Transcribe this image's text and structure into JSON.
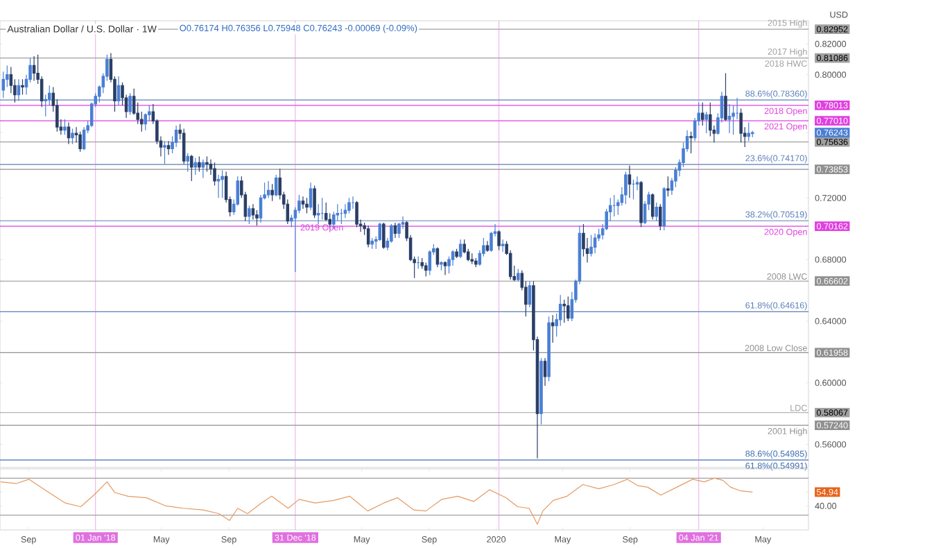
{
  "chart_data": [
    {
      "type": "candlestick",
      "title": "Australian Dollar / U.S. Dollar · 1W",
      "subtitle": "O0.76174 H0.76356 L0.75948 C0.76243 -0.00069 (-0.09%)",
      "ylabel": "USD",
      "x": [
        "2017-07-17",
        "2017-07-24",
        "2017-07-31",
        "2017-08-07",
        "2017-08-14",
        "2017-08-21",
        "2017-08-28",
        "2017-09-04",
        "2017-09-11",
        "2017-09-18",
        "2017-09-25",
        "2017-10-02",
        "2017-10-09",
        "2017-10-16",
        "2017-10-23",
        "2017-10-30",
        "2017-11-06",
        "2017-11-13",
        "2017-11-20",
        "2017-11-27",
        "2017-12-04",
        "2017-12-11",
        "2017-12-18",
        "2017-12-25",
        "2018-01-01",
        "2018-01-08",
        "2018-01-15",
        "2018-01-22",
        "2018-01-29",
        "2018-02-05",
        "2018-02-12",
        "2018-02-19",
        "2018-02-26",
        "2018-03-05",
        "2018-03-12",
        "2018-03-19",
        "2018-03-26",
        "2018-04-02",
        "2018-04-09",
        "2018-04-16",
        "2018-04-23",
        "2018-04-30",
        "2018-05-07",
        "2018-05-14",
        "2018-05-21",
        "2018-05-28",
        "2018-06-04",
        "2018-06-11",
        "2018-06-18",
        "2018-06-25",
        "2018-07-02",
        "2018-07-09",
        "2018-07-16",
        "2018-07-23",
        "2018-07-30",
        "2018-08-06",
        "2018-08-13",
        "2018-08-20",
        "2018-08-27",
        "2018-09-03",
        "2018-09-10",
        "2018-09-17",
        "2018-09-24",
        "2018-10-01",
        "2018-10-08",
        "2018-10-15",
        "2018-10-22",
        "2018-10-29",
        "2018-11-05",
        "2018-11-12",
        "2018-11-19",
        "2018-11-26",
        "2018-12-03",
        "2018-12-10",
        "2018-12-17",
        "2018-12-24",
        "2018-12-31",
        "2019-01-07",
        "2019-01-14",
        "2019-01-21",
        "2019-01-28",
        "2019-02-04",
        "2019-02-11",
        "2019-02-18",
        "2019-02-25",
        "2019-03-04",
        "2019-03-11",
        "2019-03-18",
        "2019-03-25",
        "2019-04-01",
        "2019-04-08",
        "2019-04-15",
        "2019-04-22",
        "2019-04-29",
        "2019-05-06",
        "2019-05-13",
        "2019-05-20",
        "2019-05-27",
        "2019-06-03",
        "2019-06-10",
        "2019-06-17",
        "2019-06-24",
        "2019-07-01",
        "2019-07-08",
        "2019-07-15",
        "2019-07-22",
        "2019-07-29",
        "2019-08-05",
        "2019-08-12",
        "2019-08-19",
        "2019-08-26",
        "2019-09-02",
        "2019-09-09",
        "2019-09-16",
        "2019-09-23",
        "2019-09-30",
        "2019-10-07",
        "2019-10-14",
        "2019-10-21",
        "2019-10-28",
        "2019-11-04",
        "2019-11-11",
        "2019-11-18",
        "2019-11-25",
        "2019-12-02",
        "2019-12-09",
        "2019-12-16",
        "2019-12-23",
        "2019-12-30",
        "2020-01-06",
        "2020-01-13",
        "2020-01-20",
        "2020-01-27",
        "2020-02-03",
        "2020-02-10",
        "2020-02-17",
        "2020-02-24",
        "2020-03-02",
        "2020-03-09",
        "2020-03-16",
        "2020-03-23",
        "2020-03-30",
        "2020-04-06",
        "2020-04-13",
        "2020-04-20",
        "2020-04-27",
        "2020-05-04",
        "2020-05-11",
        "2020-05-18",
        "2020-05-25",
        "2020-06-01",
        "2020-06-08",
        "2020-06-15",
        "2020-06-22",
        "2020-06-29",
        "2020-07-06",
        "2020-07-13",
        "2020-07-20",
        "2020-07-27",
        "2020-08-03",
        "2020-08-10",
        "2020-08-17",
        "2020-08-24",
        "2020-08-31",
        "2020-09-07",
        "2020-09-14",
        "2020-09-21",
        "2020-09-28",
        "2020-10-05",
        "2020-10-12",
        "2020-10-19",
        "2020-10-26",
        "2020-11-02",
        "2020-11-09",
        "2020-11-16",
        "2020-11-23",
        "2020-11-30",
        "2020-12-07",
        "2020-12-14",
        "2020-12-21",
        "2020-12-28",
        "2021-01-04",
        "2021-01-11",
        "2021-01-18",
        "2021-01-25",
        "2021-02-01",
        "2021-02-08",
        "2021-02-15",
        "2021-02-22",
        "2021-03-01",
        "2021-03-08",
        "2021-03-15",
        "2021-03-22",
        "2021-03-29",
        "2021-04-05",
        "2021-04-12"
      ],
      "ohlc": [
        [
          0.79,
          0.802,
          0.785,
          0.797
        ],
        [
          0.797,
          0.806,
          0.792,
          0.8
        ],
        [
          0.8,
          0.805,
          0.788,
          0.793
        ],
        [
          0.793,
          0.797,
          0.782,
          0.787
        ],
        [
          0.787,
          0.797,
          0.783,
          0.793
        ],
        [
          0.793,
          0.797,
          0.787,
          0.792
        ],
        [
          0.792,
          0.8,
          0.787,
          0.797
        ],
        [
          0.797,
          0.811,
          0.795,
          0.806
        ],
        [
          0.806,
          0.812,
          0.796,
          0.801
        ],
        [
          0.801,
          0.813,
          0.794,
          0.797
        ],
        [
          0.797,
          0.799,
          0.779,
          0.783
        ],
        [
          0.783,
          0.787,
          0.773,
          0.784
        ],
        [
          0.784,
          0.793,
          0.78,
          0.788
        ],
        [
          0.788,
          0.792,
          0.776,
          0.78
        ],
        [
          0.78,
          0.784,
          0.763,
          0.766
        ],
        [
          0.766,
          0.771,
          0.761,
          0.764
        ],
        [
          0.764,
          0.771,
          0.761,
          0.766
        ],
        [
          0.766,
          0.769,
          0.755,
          0.759
        ],
        [
          0.759,
          0.765,
          0.755,
          0.762
        ],
        [
          0.762,
          0.766,
          0.756,
          0.761
        ],
        [
          0.761,
          0.763,
          0.75,
          0.752
        ],
        [
          0.752,
          0.766,
          0.751,
          0.764
        ],
        [
          0.764,
          0.77,
          0.762,
          0.767
        ],
        [
          0.767,
          0.782,
          0.766,
          0.781
        ],
        [
          0.781,
          0.788,
          0.779,
          0.786
        ],
        [
          0.786,
          0.793,
          0.782,
          0.792
        ],
        [
          0.792,
          0.801,
          0.788,
          0.799
        ],
        [
          0.799,
          0.813,
          0.796,
          0.81
        ],
        [
          0.81,
          0.814,
          0.795,
          0.797
        ],
        [
          0.797,
          0.799,
          0.776,
          0.783
        ],
        [
          0.783,
          0.799,
          0.78,
          0.793
        ],
        [
          0.793,
          0.795,
          0.78,
          0.785
        ],
        [
          0.785,
          0.787,
          0.772,
          0.776
        ],
        [
          0.776,
          0.788,
          0.774,
          0.786
        ],
        [
          0.786,
          0.791,
          0.774,
          0.775
        ],
        [
          0.775,
          0.782,
          0.768,
          0.771
        ],
        [
          0.771,
          0.776,
          0.763,
          0.768
        ],
        [
          0.768,
          0.775,
          0.764,
          0.774
        ],
        [
          0.774,
          0.78,
          0.77,
          0.776
        ],
        [
          0.776,
          0.781,
          0.768,
          0.77
        ],
        [
          0.77,
          0.771,
          0.755,
          0.757
        ],
        [
          0.757,
          0.76,
          0.747,
          0.753
        ],
        [
          0.753,
          0.757,
          0.742,
          0.754
        ],
        [
          0.754,
          0.757,
          0.748,
          0.752
        ],
        [
          0.752,
          0.76,
          0.749,
          0.756
        ],
        [
          0.756,
          0.767,
          0.753,
          0.764
        ],
        [
          0.764,
          0.768,
          0.758,
          0.762
        ],
        [
          0.762,
          0.765,
          0.742,
          0.744
        ],
        [
          0.744,
          0.749,
          0.737,
          0.747
        ],
        [
          0.747,
          0.748,
          0.731,
          0.74
        ],
        [
          0.74,
          0.746,
          0.735,
          0.743
        ],
        [
          0.743,
          0.747,
          0.737,
          0.74
        ],
        [
          0.74,
          0.745,
          0.733,
          0.743
        ],
        [
          0.743,
          0.747,
          0.737,
          0.742
        ],
        [
          0.742,
          0.745,
          0.735,
          0.739
        ],
        [
          0.739,
          0.743,
          0.728,
          0.731
        ],
        [
          0.731,
          0.735,
          0.72,
          0.732
        ],
        [
          0.732,
          0.738,
          0.72,
          0.734
        ],
        [
          0.734,
          0.737,
          0.717,
          0.719
        ],
        [
          0.719,
          0.721,
          0.708,
          0.711
        ],
        [
          0.711,
          0.719,
          0.709,
          0.716
        ],
        [
          0.716,
          0.734,
          0.715,
          0.731
        ],
        [
          0.731,
          0.734,
          0.72,
          0.722
        ],
        [
          0.722,
          0.724,
          0.705,
          0.708
        ],
        [
          0.708,
          0.715,
          0.703,
          0.713
        ],
        [
          0.713,
          0.716,
          0.706,
          0.709
        ],
        [
          0.709,
          0.712,
          0.702,
          0.707
        ],
        [
          0.707,
          0.722,
          0.704,
          0.72
        ],
        [
          0.72,
          0.73,
          0.719,
          0.722
        ],
        [
          0.722,
          0.731,
          0.72,
          0.725
        ],
        [
          0.725,
          0.729,
          0.718,
          0.722
        ],
        [
          0.722,
          0.735,
          0.721,
          0.733
        ],
        [
          0.733,
          0.739,
          0.719,
          0.722
        ],
        [
          0.722,
          0.724,
          0.713,
          0.716
        ],
        [
          0.716,
          0.719,
          0.703,
          0.705
        ],
        [
          0.705,
          0.709,
          0.701,
          0.707
        ],
        [
          0.707,
          0.714,
          0.672,
          0.712
        ],
        [
          0.712,
          0.722,
          0.71,
          0.718
        ],
        [
          0.718,
          0.721,
          0.713,
          0.716
        ],
        [
          0.716,
          0.72,
          0.71,
          0.714
        ],
        [
          0.714,
          0.73,
          0.712,
          0.726
        ],
        [
          0.726,
          0.728,
          0.707,
          0.709
        ],
        [
          0.709,
          0.716,
          0.703,
          0.71
        ],
        [
          0.71,
          0.72,
          0.706,
          0.71
        ],
        [
          0.71,
          0.717,
          0.705,
          0.706
        ],
        [
          0.706,
          0.71,
          0.7,
          0.703
        ],
        [
          0.703,
          0.711,
          0.7,
          0.709
        ],
        [
          0.709,
          0.716,
          0.705,
          0.71
        ],
        [
          0.71,
          0.713,
          0.703,
          0.71
        ],
        [
          0.71,
          0.716,
          0.707,
          0.712
        ],
        [
          0.712,
          0.72,
          0.71,
          0.717
        ],
        [
          0.717,
          0.721,
          0.713,
          0.717
        ],
        [
          0.717,
          0.718,
          0.701,
          0.703
        ],
        [
          0.703,
          0.706,
          0.698,
          0.702
        ],
        [
          0.702,
          0.704,
          0.696,
          0.7
        ],
        [
          0.7,
          0.702,
          0.688,
          0.69
        ],
        [
          0.69,
          0.694,
          0.687,
          0.692
        ],
        [
          0.692,
          0.695,
          0.687,
          0.693
        ],
        [
          0.693,
          0.704,
          0.692,
          0.703
        ],
        [
          0.703,
          0.704,
          0.687,
          0.688
        ],
        [
          0.688,
          0.694,
          0.686,
          0.692
        ],
        [
          0.692,
          0.703,
          0.691,
          0.702
        ],
        [
          0.702,
          0.704,
          0.694,
          0.697
        ],
        [
          0.697,
          0.704,
          0.694,
          0.703
        ],
        [
          0.703,
          0.708,
          0.7,
          0.704
        ],
        [
          0.704,
          0.705,
          0.692,
          0.694
        ],
        [
          0.694,
          0.696,
          0.679,
          0.68
        ],
        [
          0.68,
          0.682,
          0.668,
          0.678
        ],
        [
          0.678,
          0.682,
          0.674,
          0.678
        ],
        [
          0.678,
          0.681,
          0.674,
          0.676
        ],
        [
          0.676,
          0.678,
          0.669,
          0.673
        ],
        [
          0.673,
          0.686,
          0.67,
          0.685
        ],
        [
          0.685,
          0.69,
          0.683,
          0.687
        ],
        [
          0.687,
          0.688,
          0.675,
          0.677
        ],
        [
          0.677,
          0.679,
          0.673,
          0.678
        ],
        [
          0.678,
          0.679,
          0.67,
          0.676
        ],
        [
          0.676,
          0.682,
          0.671,
          0.68
        ],
        [
          0.68,
          0.686,
          0.676,
          0.685
        ],
        [
          0.685,
          0.687,
          0.681,
          0.682
        ],
        [
          0.682,
          0.693,
          0.681,
          0.69
        ],
        [
          0.69,
          0.693,
          0.684,
          0.685
        ],
        [
          0.685,
          0.687,
          0.679,
          0.68
        ],
        [
          0.68,
          0.684,
          0.677,
          0.679
        ],
        [
          0.679,
          0.681,
          0.675,
          0.677
        ],
        [
          0.677,
          0.686,
          0.676,
          0.684
        ],
        [
          0.684,
          0.694,
          0.682,
          0.689
        ],
        [
          0.689,
          0.692,
          0.685,
          0.686
        ],
        [
          0.686,
          0.698,
          0.685,
          0.697
        ],
        [
          0.697,
          0.703,
          0.695,
          0.698
        ],
        [
          0.698,
          0.699,
          0.686,
          0.689
        ],
        [
          0.689,
          0.693,
          0.685,
          0.69
        ],
        [
          0.69,
          0.692,
          0.683,
          0.684
        ],
        [
          0.684,
          0.686,
          0.667,
          0.669
        ],
        [
          0.669,
          0.676,
          0.666,
          0.667
        ],
        [
          0.667,
          0.674,
          0.666,
          0.671
        ],
        [
          0.671,
          0.673,
          0.66,
          0.662
        ],
        [
          0.662,
          0.666,
          0.643,
          0.651
        ],
        [
          0.651,
          0.666,
          0.649,
          0.663
        ],
        [
          0.663,
          0.666,
          0.621,
          0.628
        ],
        [
          0.628,
          0.63,
          0.551,
          0.58
        ],
        [
          0.58,
          0.616,
          0.573,
          0.614
        ],
        [
          0.614,
          0.616,
          0.598,
          0.604
        ],
        [
          0.604,
          0.643,
          0.601,
          0.639
        ],
        [
          0.639,
          0.644,
          0.626,
          0.637
        ],
        [
          0.637,
          0.645,
          0.63,
          0.641
        ],
        [
          0.641,
          0.657,
          0.637,
          0.651
        ],
        [
          0.651,
          0.654,
          0.639,
          0.65
        ],
        [
          0.65,
          0.656,
          0.64,
          0.642
        ],
        [
          0.642,
          0.659,
          0.64,
          0.654
        ],
        [
          0.654,
          0.667,
          0.652,
          0.666
        ],
        [
          0.666,
          0.702,
          0.664,
          0.697
        ],
        [
          0.697,
          0.703,
          0.682,
          0.687
        ],
        [
          0.687,
          0.694,
          0.678,
          0.684
        ],
        [
          0.684,
          0.696,
          0.682,
          0.688
        ],
        [
          0.688,
          0.697,
          0.684,
          0.694
        ],
        [
          0.694,
          0.7,
          0.692,
          0.696
        ],
        [
          0.696,
          0.703,
          0.693,
          0.7
        ],
        [
          0.7,
          0.713,
          0.699,
          0.711
        ],
        [
          0.711,
          0.72,
          0.705,
          0.715
        ],
        [
          0.715,
          0.722,
          0.708,
          0.715
        ],
        [
          0.715,
          0.719,
          0.709,
          0.717
        ],
        [
          0.717,
          0.727,
          0.715,
          0.722
        ],
        [
          0.722,
          0.737,
          0.716,
          0.735
        ],
        [
          0.735,
          0.741,
          0.72,
          0.729
        ],
        [
          0.729,
          0.732,
          0.719,
          0.729
        ],
        [
          0.729,
          0.734,
          0.725,
          0.73
        ],
        [
          0.73,
          0.731,
          0.701,
          0.704
        ],
        [
          0.704,
          0.718,
          0.703,
          0.716
        ],
        [
          0.716,
          0.724,
          0.712,
          0.722
        ],
        [
          0.722,
          0.723,
          0.706,
          0.708
        ],
        [
          0.708,
          0.717,
          0.705,
          0.714
        ],
        [
          0.714,
          0.716,
          0.699,
          0.702
        ],
        [
          0.702,
          0.727,
          0.699,
          0.726
        ],
        [
          0.726,
          0.734,
          0.721,
          0.725
        ],
        [
          0.725,
          0.733,
          0.722,
          0.731
        ],
        [
          0.731,
          0.74,
          0.727,
          0.738
        ],
        [
          0.738,
          0.745,
          0.734,
          0.743
        ],
        [
          0.743,
          0.756,
          0.74,
          0.752
        ],
        [
          0.752,
          0.764,
          0.75,
          0.76
        ],
        [
          0.76,
          0.763,
          0.749,
          0.759
        ],
        [
          0.759,
          0.772,
          0.757,
          0.77
        ],
        [
          0.77,
          0.782,
          0.767,
          0.775
        ],
        [
          0.775,
          0.782,
          0.767,
          0.771
        ],
        [
          0.771,
          0.776,
          0.762,
          0.774
        ],
        [
          0.774,
          0.782,
          0.76,
          0.764
        ],
        [
          0.764,
          0.767,
          0.756,
          0.762
        ],
        [
          0.762,
          0.775,
          0.761,
          0.772
        ],
        [
          0.772,
          0.789,
          0.769,
          0.786
        ],
        [
          0.786,
          0.801,
          0.77,
          0.771
        ],
        [
          0.771,
          0.781,
          0.762,
          0.773
        ],
        [
          0.773,
          0.78,
          0.761,
          0.775
        ],
        [
          0.775,
          0.785,
          0.771,
          0.775
        ],
        [
          0.775,
          0.778,
          0.756,
          0.762
        ],
        [
          0.762,
          0.766,
          0.753,
          0.76
        ],
        [
          0.76,
          0.769,
          0.757,
          0.762
        ],
        [
          0.76174,
          0.76356,
          0.75948,
          0.76243
        ]
      ],
      "xlim": [
        "2017-07-11",
        "2021-07-23"
      ],
      "ylim": [
        0.545,
        0.835
      ],
      "yticks": [
        {
          "value": 0.56,
          "label": "0.56000"
        },
        {
          "value": 0.5724,
          "label": "0.57240"
        },
        {
          "value": 0.58067,
          "label": "0.58067"
        },
        {
          "value": 0.6,
          "label": "0.60000"
        },
        {
          "value": 0.61958,
          "label": "0.61958"
        },
        {
          "value": 0.64,
          "label": "0.64000"
        },
        {
          "value": 0.66602,
          "label": "0.66602"
        },
        {
          "value": 0.68,
          "label": "0.68000"
        },
        {
          "value": 0.70162,
          "label": "0.70162"
        },
        {
          "value": 0.72,
          "label": "0.72000"
        },
        {
          "value": 0.73853,
          "label": "0.73853"
        },
        {
          "value": 0.75636,
          "label": "0.75636"
        },
        {
          "value": 0.76243,
          "label": "0.76243"
        },
        {
          "value": 0.7701,
          "label": "0.77010"
        },
        {
          "value": 0.78013,
          "label": "0.78013"
        },
        {
          "value": 0.8,
          "label": "0.80000"
        },
        {
          "value": 0.81086,
          "label": "0.81086"
        },
        {
          "value": 0.82,
          "label": "0.82000"
        },
        {
          "value": 0.82952,
          "label": "0.82952"
        }
      ],
      "tick_labels": "y",
      "ref_lines": [
        {
          "axis": "y",
          "value": 0.82952,
          "label": "2015 High",
          "color": "#a0a0a0"
        },
        {
          "axis": "y",
          "value": 0.81086,
          "label": "2017 High",
          "color": "#a0a0a0"
        },
        {
          "axis": "y",
          "value": 0.7836,
          "label": "88.6%(0.78360)",
          "color": "#5b7fb8"
        },
        {
          "axis": "y",
          "value": 0.78013,
          "label": "2018 Open",
          "color": "#e040e0"
        },
        {
          "axis": "y",
          "value": 0.7701,
          "label": "2021 Open",
          "color": "#e040e0"
        },
        {
          "axis": "y",
          "value": 0.75636,
          "color": "#a0a0a0"
        },
        {
          "axis": "y",
          "value": 0.7417,
          "label": "23.6%(0.74170)",
          "color": "#5b7fb8"
        },
        {
          "axis": "y",
          "value": 0.73853,
          "color": "#909090"
        },
        {
          "axis": "y",
          "value": 0.70519,
          "label": "38.2%(0.70519)",
          "color": "#5b7fb8"
        },
        {
          "axis": "y",
          "value": 0.70162,
          "label": "2020 Open",
          "color": "#e040e0"
        },
        {
          "axis": "y",
          "value": 0.66602,
          "label": "2008 LWC",
          "color": "#909090"
        },
        {
          "axis": "y",
          "value": 0.64616,
          "label": "61.8%(0.64616)",
          "color": "#5b7fb8"
        },
        {
          "axis": "y",
          "value": 0.61958,
          "label": "2008 Low Close",
          "color": "#909090"
        },
        {
          "axis": "y",
          "value": 0.58067,
          "label": "LDC",
          "color": "#a0a0a0"
        },
        {
          "axis": "y",
          "value": 0.5724,
          "label": "2001 High",
          "color": "#909090"
        },
        {
          "axis": "y",
          "value": 0.54985,
          "label": "88.6%(0.54985)",
          "color": "#3f6fb0"
        },
        {
          "axis": "x",
          "value": "2018-01-01",
          "color": "#e070e0"
        },
        {
          "axis": "x",
          "value": "2018-12-31",
          "color": "#e070e0"
        },
        {
          "axis": "x",
          "value": "2020-01-06",
          "color": "#e070e0"
        },
        {
          "axis": "x",
          "value": "2021-01-04",
          "color": "#e070e0"
        }
      ],
      "annotations": [
        {
          "text": "2019 Open",
          "x": "2019-01-07",
          "y": 0.7045
        },
        {
          "text": "2018 HWC",
          "x": "2021-07-23",
          "y": 0.81086
        },
        {
          "text": "61.8%(0.54991)",
          "x": "2021-07-23",
          "y": 0.54991
        }
      ]
    },
    {
      "type": "line",
      "x": [
        "2017-07-12",
        "2017-08-10",
        "2017-09-02",
        "2017-10-08",
        "2017-11-07",
        "2017-12-05",
        "2017-12-29",
        "2018-01-22",
        "2018-02-05",
        "2018-03-01",
        "2018-04-04",
        "2018-05-08",
        "2018-06-10",
        "2018-07-16",
        "2018-08-14",
        "2018-09-02",
        "2018-09-17",
        "2018-10-05",
        "2018-10-30",
        "2018-11-18",
        "2018-12-18",
        "2019-01-07",
        "2019-02-05",
        "2019-03-11",
        "2019-04-09",
        "2019-05-12",
        "2019-06-10",
        "2019-07-05",
        "2019-08-04",
        "2019-08-26",
        "2019-09-24",
        "2019-10-23",
        "2019-11-21",
        "2019-12-20",
        "2020-01-19",
        "2020-02-09",
        "2020-03-01",
        "2020-03-16",
        "2020-03-26",
        "2020-04-14",
        "2020-05-09",
        "2020-06-07",
        "2020-07-06",
        "2020-08-03",
        "2020-08-27",
        "2020-09-15",
        "2020-10-03",
        "2020-10-27",
        "2020-11-25",
        "2020-12-24",
        "2021-01-14",
        "2021-02-02",
        "2021-02-17",
        "2021-03-03",
        "2021-03-22",
        "2021-04-12"
      ],
      "series": [
        {
          "color": "#e59a62",
          "values": [
            66.0,
            64.2,
            68.8,
            54.5,
            43.1,
            39.1,
            51.7,
            66.0,
            54.5,
            50.5,
            48.8,
            40.2,
            37.4,
            35.6,
            31.6,
            24.2,
            37.4,
            31.6,
            43.1,
            50.5,
            37.4,
            47.1,
            43.1,
            46.0,
            50.5,
            34.5,
            43.1,
            48.8,
            35.6,
            34.5,
            47.1,
            50.5,
            44.8,
            57.4,
            48.8,
            39.1,
            37.4,
            20.2,
            34.5,
            46.0,
            50.5,
            63.1,
            58.5,
            63.1,
            68.8,
            61.9,
            60.2,
            51.7,
            60.2,
            68.8,
            66.0,
            70.0,
            67.7,
            60.2,
            56.2,
            54.94
          ]
        }
      ],
      "xlim": [
        "2017-07-11",
        "2021-07-23"
      ],
      "ylim": [
        14,
        80
      ],
      "xticks": [
        {
          "value": "2017-09-01",
          "label": "Sep"
        },
        {
          "value": "2018-05-01",
          "label": "May"
        },
        {
          "value": "2018-09-01",
          "label": "Sep"
        },
        {
          "value": "2019-05-01",
          "label": "May"
        },
        {
          "value": "2019-09-01",
          "label": "Sep"
        },
        {
          "value": "2020-01-01",
          "label": "2020"
        },
        {
          "value": "2020-05-01",
          "label": "May"
        },
        {
          "value": "2020-09-01",
          "label": "Sep"
        },
        {
          "value": "2021-05-01",
          "label": "May"
        }
      ],
      "yticks": [
        {
          "value": 40,
          "label": "40.00"
        },
        {
          "value": 54.94,
          "label": "54.94"
        }
      ],
      "ref_lines": [
        {
          "axis": "y",
          "value": 70,
          "color": "#a0a0a0"
        },
        {
          "axis": "y",
          "value": 30,
          "color": "#a0a0a0"
        },
        {
          "axis": "x",
          "value": "2018-01-01",
          "label": "01 Jan '18",
          "color": "#e070e0"
        },
        {
          "axis": "x",
          "value": "2018-12-31",
          "label": "31 Dec '18",
          "color": "#e070e0"
        },
        {
          "axis": "x",
          "value": "2020-01-06",
          "color": "#e070e0"
        },
        {
          "axis": "x",
          "value": "2021-01-04",
          "label": "04 Jan '21",
          "color": "#e070e0"
        }
      ]
    }
  ]
}
